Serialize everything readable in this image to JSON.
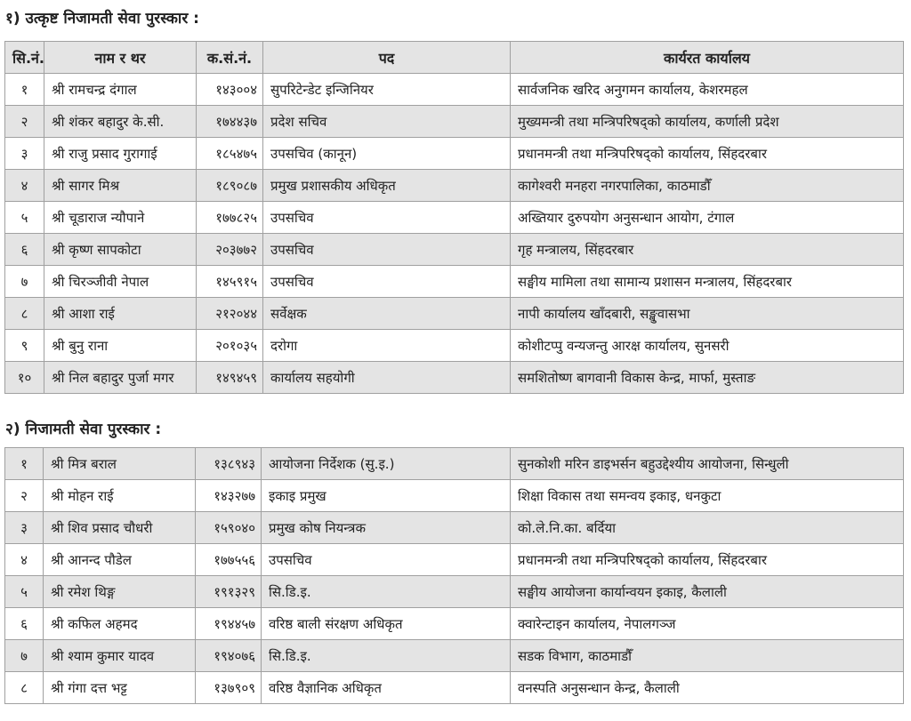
{
  "section1": {
    "title": "१) उत्कृष्ट निजामती सेवा पुरस्कार :",
    "headers": [
      "सि.नं.",
      "नाम र थर",
      "क.सं.नं.",
      "पद",
      "कार्यरत कार्यालय"
    ],
    "rows": [
      [
        "१",
        "श्री रामचन्द्र दंगाल",
        "१४३००४",
        "सुपरिटेन्डेट इन्जिनियर",
        "सार्वजनिक खरिद अनुगमन कार्यालय, केशरमहल"
      ],
      [
        "२",
        "श्री शंकर बहादुर के.सी.",
        "१७४४३७",
        "प्रदेश सचिव",
        "मुख्यमन्त्री तथा मन्त्रिपरिषद्को कार्यालय, कर्णाली प्रदेश"
      ],
      [
        "३",
        "श्री राजु प्रसाद गुरागाई",
        "१८५४७५",
        "उपसचिव (कानून)",
        "प्रधानमन्त्री तथा मन्त्रिपरिषद्को कार्यालय, सिंहदरबार"
      ],
      [
        "४",
        "श्री सागर मिश्र",
        "१८९०८७",
        "प्रमुख प्रशासकीय अधिकृत",
        "कागेश्वरी मनहरा नगरपालिका, काठमाडौँ"
      ],
      [
        "५",
        "श्री चूडाराज न्यौपाने",
        "१७७८२५",
        "उपसचिव",
        "अख्तियार दुरुपयोग अनुसन्धान आयोग, टंगाल"
      ],
      [
        "६",
        "श्री कृष्ण सापकोटा",
        "२०३७७२",
        "उपसचिव",
        "गृह मन्त्रालय, सिंहदरबार"
      ],
      [
        "७",
        "श्री चिरञ्जीवी नेपाल",
        "१४५९१५",
        "उपसचिव",
        "सङ्घीय मामिला तथा सामान्य प्रशासन मन्त्रालय, सिंहदरबार"
      ],
      [
        "८",
        "श्री आशा राई",
        "२१२०४४",
        "सर्वेक्षक",
        "नापी कार्यालय खाँदबारी, सङ्खुवासभा"
      ],
      [
        "९",
        "श्री बुनु राना",
        "२०१०३५",
        "दरोगा",
        "कोशीटप्पु वन्यजन्तु आरक्ष कार्यालय, सुनसरी"
      ],
      [
        "१०",
        "श्री निल बहादुर पुर्जा मगर",
        "१४९४५९",
        "कार्यालय सहयोगी",
        "समशितोष्ण बागवानी विकास केन्द्र, मार्फा, मुस्ताङ"
      ]
    ]
  },
  "section2": {
    "title": "२) निजामती सेवा पुरस्कार :",
    "rows": [
      [
        "१",
        "श्री मित्र बराल",
        "१३८९४३",
        "आयोजना निर्देशक (सु.इ.)",
        "सुनकोशी मरिन डाइभर्सन बहुउद्देश्यीय आयोजना, सिन्धुली"
      ],
      [
        "२",
        "श्री मोहन राई",
        "१४३२७७",
        "इकाइ प्रमुख",
        "शिक्षा विकास तथा समन्वय इकाइ, धनकुटा"
      ],
      [
        "३",
        "श्री शिव प्रसाद चौधरी",
        "१५९०४०",
        "प्रमुख कोष नियन्त्रक",
        "को.ले.नि.का. बर्दिया"
      ],
      [
        "४",
        "श्री आनन्द पौडेल",
        "१७७५५६",
        "उपसचिव",
        "प्रधानमन्त्री तथा मन्त्रिपरिषद्को कार्यालय, सिंहदरबार"
      ],
      [
        "५",
        "श्री रमेश थिङ्ग",
        "१९१३२९",
        "सि.डि.इ.",
        "सङ्घीय आयोजना कार्यान्वयन इकाइ, कैलाली"
      ],
      [
        "६",
        "श्री कफिल अहमद",
        "१९४४५७",
        "वरिष्ठ बाली संरक्षण अधिकृत",
        "क्वारेन्टाइन कार्यालय, नेपालगञ्ज"
      ],
      [
        "७",
        "श्री श्याम कुमार यादव",
        "१९४०७६",
        "सि.डि.इ.",
        "सडक विभाग, काठमाडौँ"
      ],
      [
        "८",
        "श्री गंगा दत्त भट्ट",
        "१३७९०९",
        "वरिष्ठ वैज्ञानिक अधिकृत",
        "वनस्पति अनुसन्धान केन्द्र, कैलाली"
      ]
    ]
  }
}
